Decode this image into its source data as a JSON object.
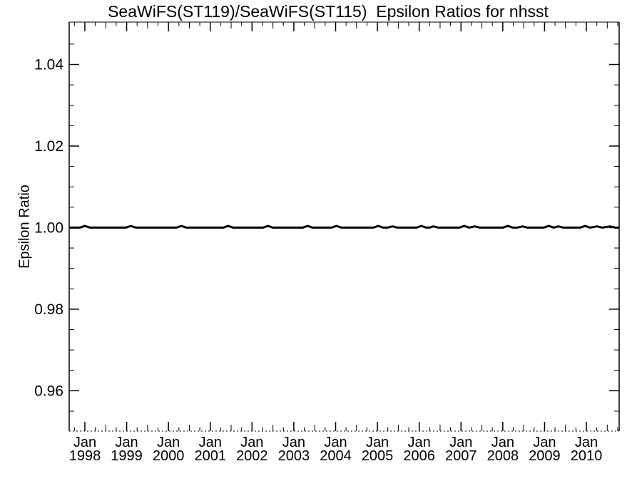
{
  "page": {
    "background": "#ffffff"
  },
  "chart_data": {
    "type": "line",
    "title": "SeaWiFS(ST119)/SeaWiFS(ST115)  Epsilon Ratios for nhsst",
    "ylabel": "Epsilon Ratio",
    "xlabel": "",
    "grid": false,
    "legend": null,
    "background_color": "#ffffff",
    "axis_color": "#000000",
    "line_color": "#000000",
    "line_width": 3,
    "x_range": [
      1997.625,
      2010.785
    ],
    "y_range": [
      0.9501,
      1.0504
    ],
    "y_major_ticks": [
      {
        "value": 0.96,
        "label": "0.96"
      },
      {
        "value": 0.98,
        "label": "0.98"
      },
      {
        "value": 1.0,
        "label": "1.00"
      },
      {
        "value": 1.02,
        "label": "1.02"
      },
      {
        "value": 1.04,
        "label": "1.04"
      }
    ],
    "y_minor_values": [
      0.955,
      0.965,
      0.97,
      0.975,
      0.985,
      0.99,
      0.995,
      1.005,
      1.01,
      1.015,
      1.025,
      1.03,
      1.035,
      1.045
    ],
    "x_major_ticks": [
      {
        "t": 1998.0,
        "month": "Jan",
        "year": "1998"
      },
      {
        "t": 1999.0,
        "month": "Jan",
        "year": "1999"
      },
      {
        "t": 2000.0,
        "month": "Jan",
        "year": "2000"
      },
      {
        "t": 2001.0,
        "month": "Jan",
        "year": "2001"
      },
      {
        "t": 2002.0,
        "month": "Jan",
        "year": "2002"
      },
      {
        "t": 2003.0,
        "month": "Jan",
        "year": "2003"
      },
      {
        "t": 2004.0,
        "month": "Jan",
        "year": "2004"
      },
      {
        "t": 2005.0,
        "month": "Jan",
        "year": "2005"
      },
      {
        "t": 2006.0,
        "month": "Jan",
        "year": "2006"
      },
      {
        "t": 2007.0,
        "month": "Jan",
        "year": "2007"
      },
      {
        "t": 2008.0,
        "month": "Jan",
        "year": "2008"
      },
      {
        "t": 2009.0,
        "month": "Jan",
        "year": "2009"
      },
      {
        "t": 2010.0,
        "month": "Jan",
        "year": "2010"
      }
    ],
    "x_minor_ticks": [
      [
        1997.75,
        "s"
      ],
      [
        1998.25,
        "s"
      ],
      [
        1998.5,
        "m"
      ],
      [
        1998.75,
        "s"
      ],
      [
        1999.25,
        "s"
      ],
      [
        1999.5,
        "m"
      ],
      [
        1999.75,
        "s"
      ],
      [
        2000.25,
        "s"
      ],
      [
        2000.5,
        "m"
      ],
      [
        2000.75,
        "s"
      ],
      [
        2001.25,
        "s"
      ],
      [
        2001.5,
        "m"
      ],
      [
        2001.75,
        "s"
      ],
      [
        2002.25,
        "s"
      ],
      [
        2002.5,
        "m"
      ],
      [
        2002.75,
        "s"
      ],
      [
        2003.25,
        "s"
      ],
      [
        2003.5,
        "m"
      ],
      [
        2003.75,
        "s"
      ],
      [
        2004.25,
        "s"
      ],
      [
        2004.5,
        "m"
      ],
      [
        2004.75,
        "s"
      ],
      [
        2005.25,
        "s"
      ],
      [
        2005.5,
        "m"
      ],
      [
        2005.75,
        "s"
      ],
      [
        2006.25,
        "s"
      ],
      [
        2006.5,
        "m"
      ],
      [
        2006.75,
        "s"
      ],
      [
        2007.25,
        "s"
      ],
      [
        2007.5,
        "m"
      ],
      [
        2007.75,
        "s"
      ],
      [
        2008.25,
        "s"
      ],
      [
        2008.5,
        "m"
      ],
      [
        2008.75,
        "s"
      ],
      [
        2009.25,
        "s"
      ],
      [
        2009.5,
        "m"
      ],
      [
        2009.75,
        "s"
      ],
      [
        2010.25,
        "s"
      ],
      [
        2010.5,
        "m"
      ],
      [
        2010.75,
        "s"
      ]
    ],
    "series": [
      {
        "name": "SeaWiFS(ST119)/SeaWiFS(ST115) epsilon ratio",
        "points": [
          [
            1997.625,
            1.0
          ],
          [
            1997.88,
            1.0
          ],
          [
            1998.0,
            1.0004
          ],
          [
            1998.12,
            1.0
          ],
          [
            1998.98,
            1.0
          ],
          [
            1999.1,
            1.0004
          ],
          [
            1999.22,
            1.0
          ],
          [
            2000.19,
            1.0
          ],
          [
            2000.31,
            1.0004
          ],
          [
            2000.43,
            1.0
          ],
          [
            2001.31,
            1.0
          ],
          [
            2001.43,
            1.0004
          ],
          [
            2001.55,
            1.0
          ],
          [
            2002.26,
            1.0
          ],
          [
            2002.38,
            1.0004
          ],
          [
            2002.5,
            1.0
          ],
          [
            2003.21,
            1.0
          ],
          [
            2003.33,
            1.0004
          ],
          [
            2003.45,
            1.0
          ],
          [
            2003.9,
            1.0
          ],
          [
            2004.02,
            1.0004
          ],
          [
            2004.14,
            1.0
          ],
          [
            2004.9,
            1.0
          ],
          [
            2005.02,
            1.0004
          ],
          [
            2005.14,
            1.0
          ],
          [
            2005.24,
            1.0
          ],
          [
            2005.36,
            1.0003
          ],
          [
            2005.48,
            1.0
          ],
          [
            2005.93,
            1.0
          ],
          [
            2006.05,
            1.0004
          ],
          [
            2006.17,
            1.0
          ],
          [
            2006.24,
            1.0
          ],
          [
            2006.34,
            1.0003
          ],
          [
            2006.46,
            1.0
          ],
          [
            2006.96,
            1.0
          ],
          [
            2007.08,
            1.0004
          ],
          [
            2007.2,
            1.0
          ],
          [
            2007.33,
            1.0003
          ],
          [
            2007.45,
            1.0
          ],
          [
            2008.0,
            1.0
          ],
          [
            2008.12,
            1.0004
          ],
          [
            2008.24,
            1.0
          ],
          [
            2008.35,
            1.0
          ],
          [
            2008.47,
            1.0003
          ],
          [
            2008.59,
            1.0
          ],
          [
            2008.98,
            1.0
          ],
          [
            2009.1,
            1.0004
          ],
          [
            2009.22,
            1.0
          ],
          [
            2009.33,
            1.0003
          ],
          [
            2009.45,
            1.0
          ],
          [
            2009.85,
            1.0
          ],
          [
            2009.97,
            1.0004
          ],
          [
            2010.09,
            1.0
          ],
          [
            2010.26,
            1.0003
          ],
          [
            2010.38,
            1.0
          ],
          [
            2010.57,
            1.0003
          ],
          [
            2010.69,
            1.0
          ],
          [
            2010.785,
            1.0
          ]
        ]
      }
    ]
  }
}
